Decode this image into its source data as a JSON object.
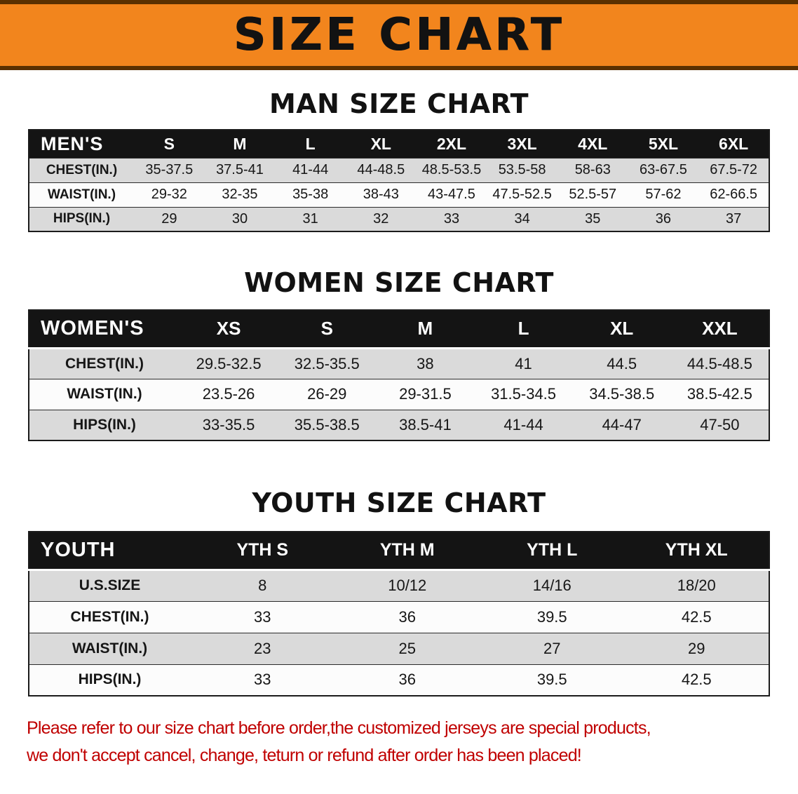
{
  "banner": {
    "title": "SIZE CHART"
  },
  "colors": {
    "banner_orange": "#F2851D",
    "banner_edge_brown": "#5A3000",
    "table_header_black": "#141414",
    "row_gray": "#DADADA",
    "row_white": "#FCFCFC",
    "notice_red": "#C00000",
    "text_black": "#121212"
  },
  "sections": [
    {
      "heading": "MAN SIZE CHART",
      "table": {
        "header": [
          "MEN'S",
          "S",
          "M",
          "L",
          "XL",
          "2XL",
          "3XL",
          "4XL",
          "5XL",
          "6XL"
        ],
        "rows": [
          [
            "CHEST(IN.)",
            "35-37.5",
            "37.5-41",
            "41-44",
            "44-48.5",
            "48.5-53.5",
            "53.5-58",
            "58-63",
            "63-67.5",
            "67.5-72"
          ],
          [
            "WAIST(IN.)",
            "29-32",
            "32-35",
            "35-38",
            "38-43",
            "43-47.5",
            "47.5-52.5",
            "52.5-57",
            "57-62",
            "62-66.5"
          ],
          [
            "HIPS(IN.)",
            "29",
            "30",
            "31",
            "32",
            "33",
            "34",
            "35",
            "36",
            "37"
          ]
        ]
      }
    },
    {
      "heading": "WOMEN SIZE CHART",
      "table": {
        "header": [
          "WOMEN'S",
          "XS",
          "S",
          "M",
          "L",
          "XL",
          "XXL"
        ],
        "rows": [
          [
            "CHEST(IN.)",
            "29.5-32.5",
            "32.5-35.5",
            "38",
            "41",
            "44.5",
            "44.5-48.5"
          ],
          [
            "WAIST(IN.)",
            "23.5-26",
            "26-29",
            "29-31.5",
            "31.5-34.5",
            "34.5-38.5",
            "38.5-42.5"
          ],
          [
            "HIPS(IN.)",
            "33-35.5",
            "35.5-38.5",
            "38.5-41",
            "41-44",
            "44-47",
            "47-50"
          ]
        ]
      }
    },
    {
      "heading": "YOUTH SIZE CHART",
      "table": {
        "header": [
          "YOUTH",
          "YTH S",
          "YTH M",
          "YTH L",
          "YTH XL"
        ],
        "rows": [
          [
            "U.S.SIZE",
            "8",
            "10/12",
            "14/16",
            "18/20"
          ],
          [
            "CHEST(IN.)",
            "33",
            "36",
            "39.5",
            "42.5"
          ],
          [
            "WAIST(IN.)",
            "23",
            "25",
            "27",
            "29"
          ],
          [
            "HIPS(IN.)",
            "33",
            "36",
            "39.5",
            "42.5"
          ]
        ]
      }
    }
  ],
  "footer": {
    "line1": "Please refer to our size chart before order,the customized jerseys are special products,",
    "line2": "we don't accept cancel, change, teturn or refund after order has been placed!"
  }
}
